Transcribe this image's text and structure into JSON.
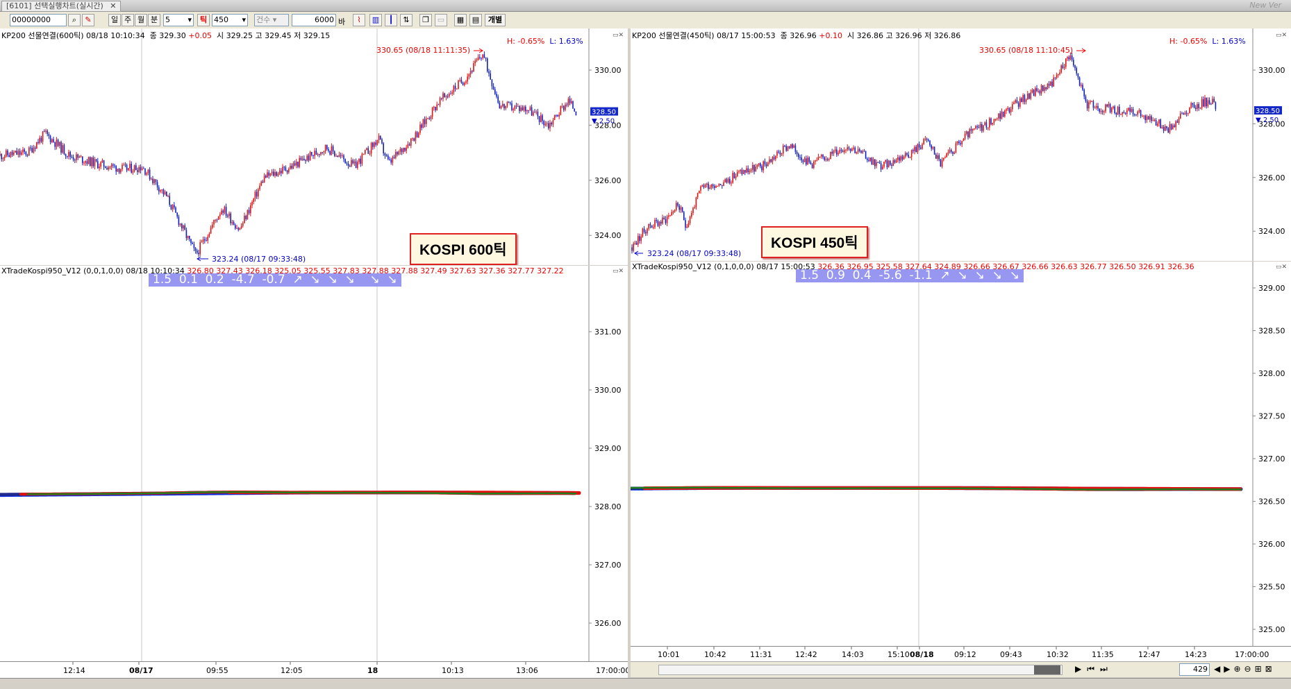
{
  "window": {
    "tab_title": "[6101] 선택실행차트(실시간)",
    "new_ver": "New Ver"
  },
  "toolbar": {
    "code": "00000000",
    "day": "일",
    "week": "주",
    "month": "월",
    "minute": "분",
    "minute_val": "5",
    "tick": "틱",
    "tick_val": "450",
    "count_label": "건수",
    "bars": "6000",
    "bar_unit": "바",
    "individual": "개별"
  },
  "left": {
    "header": "KP200 선물연결(600틱) 08/18 10:10:34",
    "change_label": "종 329.30",
    "change": "+0.05",
    "ohl": "시 329.25 고 329.45 저 329.15",
    "hl_pct": {
      "h": "H: -0.65%",
      "l": "L: 1.63%"
    },
    "high_ann": "330.65 (08/18 11:11:35)",
    "low_ann": "323.24 (08/17 09:33:48)",
    "price_tag": "328.50",
    "price_delta": "2.50",
    "kospi_box": "KOSPI 600틱",
    "price_ticks": [
      "330.00",
      "328.00",
      "326.00",
      "324.00"
    ],
    "ind_header": "XTradeKospi950_V12  (0,0,1,0,0) 08/18 10:10:34",
    "ind_values": "326.80 327.43 326.18 325.05 325.55 327.83 327.88 327.88 327.49 327.63 327.36 327.77 327.22",
    "ind_bar": "1.5  0.1  0.2  -4.7  -0.7  ↗  ↘  ↘  ↘    ↘  ↘",
    "ind_ticks": [
      "331.00",
      "330.00",
      "329.00",
      "328.00",
      "327.00",
      "326.00"
    ],
    "time_labels": [
      "12:14",
      "08/17",
      "09:55",
      "12:05",
      "18",
      "10:13",
      "13:06"
    ],
    "time_end": "17:00:00"
  },
  "right": {
    "header": "KP200 선물연결(450틱) 08/17 15:00:53",
    "change_label": "종 326.96",
    "change": "+0.10",
    "ohl": "시 326.86 고 326.96 저 326.86",
    "hl_pct": {
      "h": "H: -0.65%",
      "l": "L: 1.63%"
    },
    "high_ann": "330.65 (08/18 11:10:45)",
    "low_ann": "323.24 (08/17 09:33:48)",
    "price_tag": "328.50",
    "price_delta": "2.50",
    "kospi_box": "KOSPI 450틱",
    "price_ticks": [
      "330.00",
      "328.00",
      "326.00",
      "324.00"
    ],
    "ind_header": "XTradeKospi950_V12  (0,1,0,0,0) 08/17 15:00:53",
    "ind_values": "326.36 326.95 325.58 327.64 324.89 326.66 326.67 326.66 326.63 326.77 326.50 326.91 326.36",
    "ind_bar": "1.5  0.9  0.4  -5.6  -1.1  ↗  ↘  ↘  ↘  ↘",
    "ind_ticks": [
      "329.00",
      "328.50",
      "328.00",
      "327.50",
      "327.00",
      "326.50",
      "326.00",
      "325.50",
      "325.00"
    ],
    "time_labels": [
      "10:01",
      "10:42",
      "11:31",
      "12:42",
      "14:03",
      "15:10",
      "08/18",
      "09:12",
      "09:43",
      "10:32",
      "11:35",
      "12:47",
      "14:23"
    ],
    "time_end": "17:00:00",
    "scroll_count": "429"
  },
  "colors": {
    "up": "#e01010",
    "down": "#1020c0",
    "cyan": "#20c8e8",
    "green": "#208020"
  },
  "chart_data": [
    {
      "type": "line",
      "title": "KP200 선물연결(600틱)",
      "x": [
        "08/17 12:14",
        "08/17 09:55",
        "12:05",
        "08/18",
        "10:13",
        "13:06"
      ],
      "series": [
        {
          "name": "KP200 선물연결(600틱)",
          "values": [
            326.9,
            323.3,
            325.8,
            327.5,
            330.6,
            328.5
          ]
        }
      ],
      "ylim": [
        323,
        331
      ]
    },
    {
      "type": "line",
      "title": "KP200 선물연결(450틱)",
      "x": [
        "10:01",
        "10:42",
        "11:31",
        "12:42",
        "14:03",
        "15:10",
        "08/18",
        "10:32",
        "11:35",
        "14:23"
      ],
      "series": [
        {
          "name": "KP200 선물연결(450틱)",
          "values": [
            323.4,
            324.3,
            325.5,
            326.4,
            326.1,
            326.6,
            326.8,
            329.1,
            330.6,
            328.5
          ]
        }
      ],
      "ylim": [
        323,
        331
      ]
    }
  ]
}
